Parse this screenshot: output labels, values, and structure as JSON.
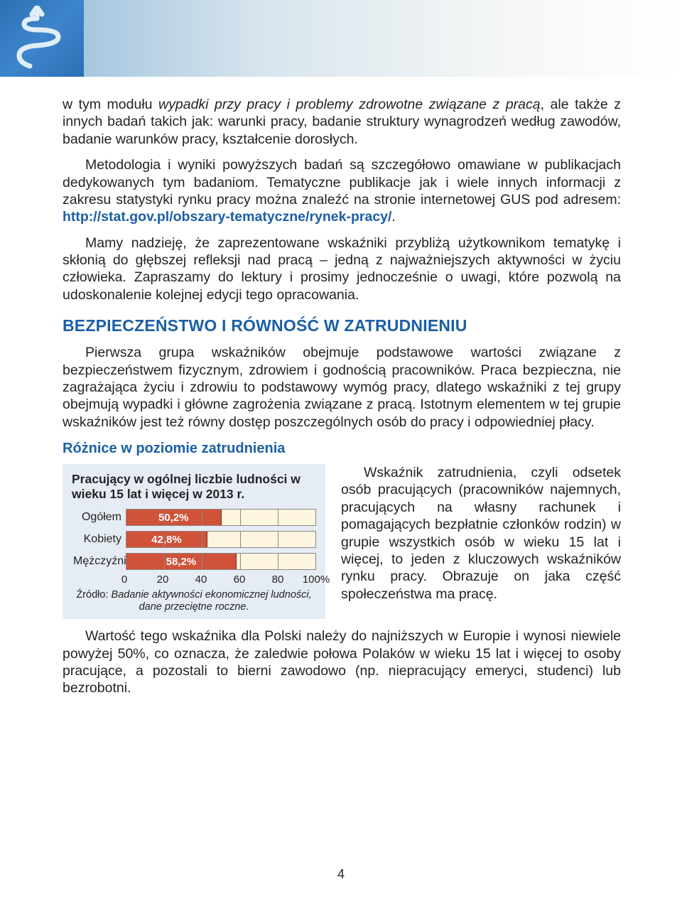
{
  "content_left": 88,
  "para1_pre": "w tym modułu ",
  "para1_italic": "wypadki przy pracy i problemy zdrowotne związane z pracą",
  "para1_post": ", ale także z innych badań takich jak: warunki pracy, badanie struktury wynagrodzeń według zawodów, badanie warunków pracy, kształcenie dorosłych.",
  "para2_text": "Metodologia i wyniki powyższych badań są szczegółowo omawiane w publikacjach dedykowanych tym badaniom. Tematyczne publikacje jak i wiele innych informacji z zakresu statystyki rynku pracy można znaleźć na stronie internetowej GUS pod adresem: ",
  "para2_link": "http://stat.gov.pl/obszary-tematyczne/rynek-pracy/",
  "para2_post": ".",
  "para3": "Mamy nadzieję, że zaprezentowane wskaźniki przybliżą użytkownikom tematykę i skłonią do głębszej refleksji nad pracą – jedną z najważniejszych aktywności w życiu człowieka. Zapraszamy do lektury i prosimy jednocześnie o uwagi, które pozwolą na udoskonalenie kolejnej edycji tego opracowania.",
  "heading": "BEZPIECZEŃSTWO I RÓWNOŚĆ W ZATRUDNIENIU",
  "para4": "Pierwsza grupa wskaźników obejmuje podstawowe wartości związane z bezpieczeństwem fizycznym, zdrowiem i godnością pracowników. Praca bezpieczna, nie zagrażająca życiu i zdrowiu to podstawowy wymóg pracy, dlatego wskaźniki z tej grupy obejmują wypadki i główne zagrożenia związane z pracą. Istotnym elementem w tej grupie wskaźników jest też równy dostęp poszczególnych osób do pracy i odpowiedniej płacy.",
  "subheading": "Różnice w poziomie zatrudnienia",
  "chart": {
    "type": "bar",
    "title": "Pracujący w ogólnej liczbie ludności w wieku 15 lat i więcej w 2013 r.",
    "categories": [
      "Ogółem",
      "Kobiety",
      "Mężczyźni"
    ],
    "values": [
      50.2,
      42.8,
      58.2
    ],
    "value_labels": [
      "50,2%",
      "42,8%",
      "58,2%"
    ],
    "bar_color": "#d05238",
    "track_color": "#fdf5de",
    "grid_color": "#888888",
    "bg_color": "#e6ecf4",
    "text_color": "#ffffff",
    "xmax": 100,
    "xticks": [
      0,
      20,
      40,
      60,
      80,
      100
    ],
    "xtick_labels": [
      "0",
      "20",
      "40",
      "60",
      "80",
      "100%"
    ],
    "source_label": "Źródło: ",
    "source_text": "Badanie aktywności ekonomicznej ludności, dane przeciętne roczne."
  },
  "side_text": "Wskaźnik zatrudnienia, czyli odsetek osób pracujących (pracowników najemnych, pracujących na własny rachunek i pomagających bezpłatnie członków rodzin) w grupie wszystkich osób w wieku 15 lat i więcej, to jeden z kluczowych wskaźników rynku pracy. Obrazuje on jaka część społeczeństwa ma pracę.",
  "para5": "Wartość tego wskaźnika dla Polski należy do najniższych w Europie i wynosi niewiele powyżej 50%, co oznacza, że zaledwie połowa Polaków w wieku 15 lat i więcej to osoby pracujące, a pozostali to bierni zawodowo (np. niepracujący emeryci, studenci) lub bezrobotni.",
  "page_number": "4"
}
